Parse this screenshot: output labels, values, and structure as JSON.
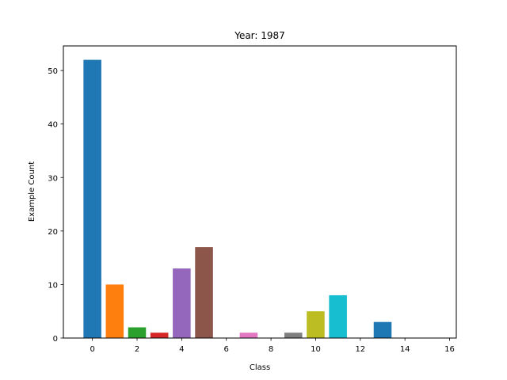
{
  "chart_data": {
    "type": "bar",
    "title": "Year: 1987",
    "xlabel": "Class",
    "ylabel": "Example Count",
    "xlim": [
      -1.3,
      16.3
    ],
    "ylim": [
      0,
      54.6
    ],
    "xticks": [
      0,
      2,
      4,
      6,
      8,
      10,
      12,
      14,
      16
    ],
    "yticks": [
      0,
      10,
      20,
      30,
      40,
      50
    ],
    "grid": false,
    "legend": "none",
    "bars": [
      {
        "class": 0,
        "value": 52,
        "color": "#1f77b4"
      },
      {
        "class": 1,
        "value": 10,
        "color": "#ff7f0e"
      },
      {
        "class": 2,
        "value": 2,
        "color": "#2ca02c"
      },
      {
        "class": 3,
        "value": 1,
        "color": "#d62728"
      },
      {
        "class": 4,
        "value": 13,
        "color": "#9467bd"
      },
      {
        "class": 5,
        "value": 17,
        "color": "#8c564b"
      },
      {
        "class": 6,
        "value": 0,
        "color": "#e377c2"
      },
      {
        "class": 7,
        "value": 1,
        "color": "#e377c2"
      },
      {
        "class": 8,
        "value": 0,
        "color": "#7f7f7f"
      },
      {
        "class": 9,
        "value": 1,
        "color": "#7f7f7f"
      },
      {
        "class": 10,
        "value": 5,
        "color": "#bcbd22"
      },
      {
        "class": 11,
        "value": 8,
        "color": "#17becf"
      },
      {
        "class": 12,
        "value": 0,
        "color": "#1f77b4"
      },
      {
        "class": 13,
        "value": 3,
        "color": "#1f77b4"
      },
      {
        "class": 14,
        "value": 0,
        "color": "#ff7f0e"
      },
      {
        "class": 15,
        "value": 0,
        "color": "#2ca02c"
      }
    ]
  }
}
